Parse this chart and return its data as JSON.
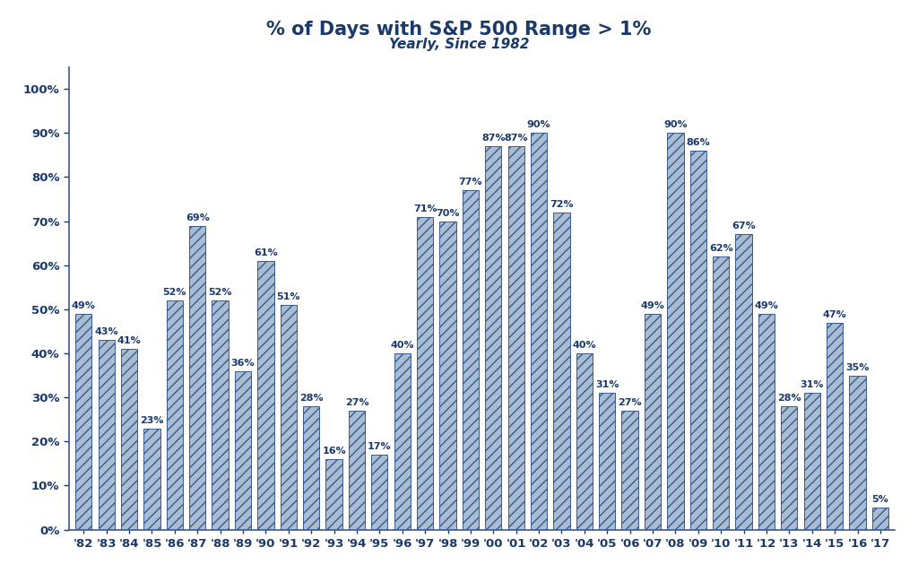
{
  "title": "% of Days with S&P 500 Range > 1%",
  "subtitle": "Yearly, Since 1982",
  "years": [
    "'82",
    "'83",
    "'84",
    "'85",
    "'86",
    "'87",
    "'88",
    "'89",
    "'90",
    "'91",
    "'92",
    "'93",
    "'94",
    "'95",
    "'96",
    "'97",
    "'98",
    "'99",
    "'00",
    "'01",
    "'02",
    "'03",
    "'04",
    "'05",
    "'06",
    "'07",
    "'08",
    "'09",
    "'10",
    "'11",
    "'12",
    "'13",
    "'14",
    "'15",
    "'16",
    "'17"
  ],
  "values": [
    49,
    43,
    41,
    23,
    52,
    69,
    52,
    36,
    61,
    51,
    28,
    16,
    27,
    17,
    40,
    71,
    70,
    77,
    87,
    87,
    90,
    72,
    40,
    31,
    27,
    49,
    90,
    86,
    62,
    67,
    49,
    28,
    31,
    47,
    35,
    5
  ],
  "bar_color": "#a8bdd4",
  "bar_edge_color": "#3b5a8a",
  "title_color": "#1a3a6b",
  "subtitle_color": "#1a3a6b",
  "label_color": "#1a3a6b",
  "axis_color": "#3b5a8a",
  "tick_color": "#1a3a6b",
  "background_color": "#ffffff",
  "ylim": [
    0,
    105
  ],
  "ytick_labels": [
    "0%",
    "10%",
    "20%",
    "30%",
    "40%",
    "50%",
    "60%",
    "70%",
    "80%",
    "90%",
    "100%"
  ],
  "ytick_values": [
    0,
    10,
    20,
    30,
    40,
    50,
    60,
    70,
    80,
    90,
    100
  ],
  "title_fontsize": 15,
  "subtitle_fontsize": 11,
  "label_fontsize": 8,
  "tick_fontsize": 9.5,
  "bar_width": 0.72
}
